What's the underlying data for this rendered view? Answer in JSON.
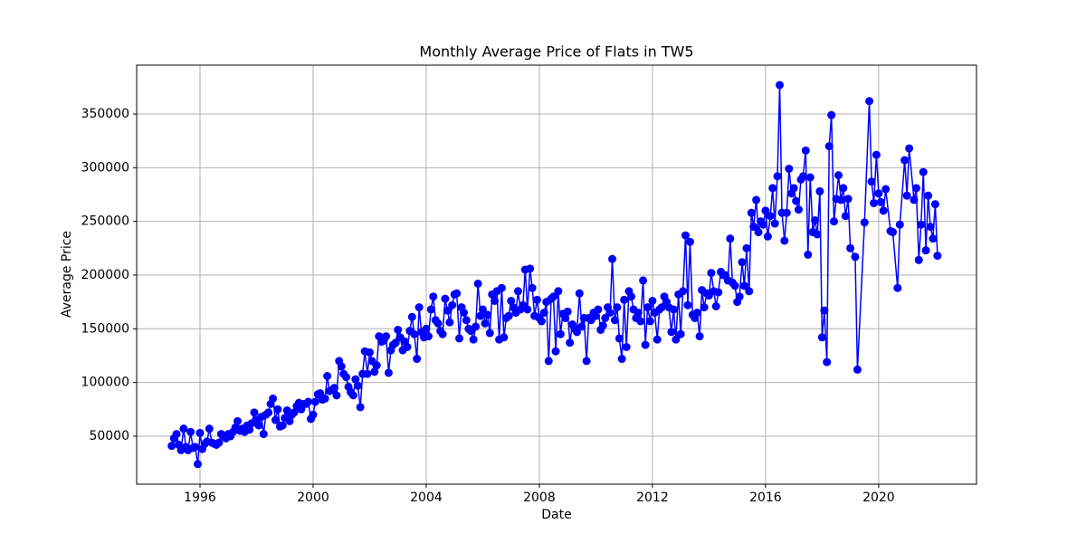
{
  "chart_data": {
    "type": "line",
    "title": "Monthly Average Price of Flats in TW5",
    "xlabel": "Date",
    "ylabel": "Average Price",
    "color": "#0000ff",
    "grid": true,
    "xlim": [
      1993.76,
      2023.46
    ],
    "ylim": [
      5300,
      395500
    ],
    "xticks": [
      1996,
      2000,
      2004,
      2008,
      2012,
      2016,
      2020
    ],
    "yticks": [
      50000,
      100000,
      150000,
      200000,
      250000,
      300000,
      350000
    ],
    "x": [
      1995,
      1995.08,
      1995.17,
      1995.25,
      1995.33,
      1995.42,
      1995.5,
      1995.58,
      1995.67,
      1995.75,
      1995.83,
      1995.92,
      1996,
      1996.08,
      1996.17,
      1996.25,
      1996.33,
      1996.42,
      1996.5,
      1996.58,
      1996.67,
      1996.75,
      1996.83,
      1996.92,
      1997,
      1997.08,
      1997.17,
      1997.25,
      1997.33,
      1997.42,
      1997.5,
      1997.58,
      1997.67,
      1997.75,
      1997.83,
      1997.92,
      1998,
      1998.08,
      1998.17,
      1998.25,
      1998.33,
      1998.42,
      1998.5,
      1998.58,
      1998.67,
      1998.75,
      1998.83,
      1998.92,
      1999,
      1999.08,
      1999.17,
      1999.25,
      1999.33,
      1999.42,
      1999.5,
      1999.58,
      1999.67,
      1999.75,
      1999.83,
      1999.92,
      2000,
      2000.08,
      2000.17,
      2000.25,
      2000.33,
      2000.42,
      2000.5,
      2000.58,
      2000.67,
      2000.75,
      2000.83,
      2000.92,
      2001,
      2001.08,
      2001.17,
      2001.25,
      2001.33,
      2001.42,
      2001.5,
      2001.58,
      2001.67,
      2001.75,
      2001.83,
      2001.92,
      2002,
      2002.08,
      2002.17,
      2002.25,
      2002.33,
      2002.42,
      2002.5,
      2002.58,
      2002.67,
      2002.75,
      2002.83,
      2002.92,
      2003,
      2003.08,
      2003.17,
      2003.25,
      2003.33,
      2003.42,
      2003.5,
      2003.58,
      2003.67,
      2003.75,
      2003.83,
      2003.92,
      2004,
      2004.08,
      2004.17,
      2004.25,
      2004.33,
      2004.42,
      2004.5,
      2004.58,
      2004.67,
      2004.75,
      2004.83,
      2004.92,
      2005,
      2005.08,
      2005.17,
      2005.25,
      2005.33,
      2005.42,
      2005.5,
      2005.58,
      2005.67,
      2005.75,
      2005.83,
      2005.92,
      2006,
      2006.08,
      2006.17,
      2006.25,
      2006.33,
      2006.42,
      2006.5,
      2006.58,
      2006.67,
      2006.75,
      2006.83,
      2006.92,
      2007,
      2007.08,
      2007.17,
      2007.25,
      2007.33,
      2007.42,
      2007.5,
      2007.58,
      2007.67,
      2007.75,
      2007.83,
      2007.92,
      2008,
      2008.08,
      2008.17,
      2008.25,
      2008.33,
      2008.42,
      2008.5,
      2008.58,
      2008.67,
      2008.75,
      2008.83,
      2008.92,
      2009,
      2009.08,
      2009.17,
      2009.25,
      2009.33,
      2009.42,
      2009.5,
      2009.58,
      2009.67,
      2009.75,
      2009.83,
      2009.92,
      2010,
      2010.08,
      2010.17,
      2010.25,
      2010.33,
      2010.42,
      2010.5,
      2010.58,
      2010.67,
      2010.75,
      2010.83,
      2010.92,
      2011,
      2011.08,
      2011.17,
      2011.25,
      2011.33,
      2011.42,
      2011.5,
      2011.58,
      2011.67,
      2011.75,
      2011.83,
      2011.92,
      2012,
      2012.08,
      2012.17,
      2012.25,
      2012.33,
      2012.42,
      2012.5,
      2012.58,
      2012.67,
      2012.75,
      2012.83,
      2012.92,
      2013,
      2013.08,
      2013.17,
      2013.25,
      2013.33,
      2013.42,
      2013.5,
      2013.58,
      2013.67,
      2013.75,
      2013.83,
      2013.92,
      2014,
      2014.08,
      2014.17,
      2014.25,
      2014.33,
      2014.42,
      2014.5,
      2014.58,
      2014.67,
      2014.75,
      2014.83,
      2014.92,
      2015,
      2015.08,
      2015.17,
      2015.25,
      2015.33,
      2015.42,
      2015.5,
      2015.58,
      2015.67,
      2015.75,
      2015.83,
      2015.92,
      2016,
      2016.08,
      2016.17,
      2016.25,
      2016.33,
      2016.42,
      2016.5,
      2016.58,
      2016.67,
      2016.75,
      2016.83,
      2016.92,
      2017,
      2017.08,
      2017.17,
      2017.25,
      2017.33,
      2017.42,
      2017.5,
      2017.58,
      2017.67,
      2017.75,
      2017.83,
      2017.92,
      2018,
      2018.08,
      2018.17,
      2018.25,
      2018.33,
      2018.42,
      2018.5,
      2018.58,
      2018.67,
      2018.75,
      2018.83,
      2018.92,
      2019,
      2019.17,
      2019.25,
      2019.5,
      2019.67,
      2019.75,
      2019.83,
      2019.92,
      2020,
      2020.08,
      2020.17,
      2020.25,
      2020.42,
      2020.5,
      2020.67,
      2020.75,
      2020.92,
      2021,
      2021.08,
      2021.25,
      2021.33,
      2021.42,
      2021.5,
      2021.58,
      2021.67,
      2021.75,
      2021.83,
      2021.92,
      2022,
      2022.08
    ],
    "values": [
      41000,
      48000,
      52000,
      42000,
      37000,
      57000,
      40000,
      37000,
      54000,
      39000,
      40000,
      24000,
      53000,
      38000,
      43000,
      45000,
      57000,
      44000,
      43000,
      42000,
      44000,
      52000,
      50000,
      48000,
      52000,
      50000,
      54000,
      58000,
      64000,
      55000,
      57000,
      54000,
      60000,
      56000,
      62000,
      72000,
      65000,
      60000,
      68000,
      52000,
      70000,
      72000,
      80000,
      85000,
      65000,
      75000,
      59000,
      60000,
      67000,
      74000,
      64000,
      70000,
      72000,
      78000,
      81000,
      75000,
      80000,
      80000,
      82000,
      66000,
      70000,
      82000,
      89000,
      90000,
      84000,
      85000,
      106000,
      92000,
      93000,
      95000,
      88000,
      120000,
      115000,
      108000,
      105000,
      96000,
      91000,
      88000,
      103000,
      97000,
      77000,
      108000,
      129000,
      108000,
      128000,
      120000,
      110000,
      116000,
      143000,
      138000,
      139000,
      143000,
      109000,
      130000,
      135000,
      137000,
      149000,
      142000,
      130000,
      138000,
      133000,
      148000,
      161000,
      145000,
      122000,
      170000,
      147000,
      142000,
      150000,
      143000,
      168000,
      180000,
      158000,
      155000,
      148000,
      145000,
      178000,
      167000,
      156000,
      172000,
      182000,
      183000,
      141000,
      170000,
      165000,
      158000,
      150000,
      148000,
      140000,
      152000,
      192000,
      162000,
      168000,
      155000,
      163000,
      146000,
      182000,
      176000,
      185000,
      140000,
      188000,
      142000,
      160000,
      162000,
      176000,
      170000,
      165000,
      185000,
      168000,
      172000,
      205000,
      168000,
      206000,
      188000,
      162000,
      177000,
      160000,
      157000,
      165000,
      175000,
      120000,
      178000,
      180000,
      129000,
      185000,
      145000,
      164000,
      160000,
      166000,
      137000,
      154000,
      150000,
      147000,
      183000,
      152000,
      160000,
      120000,
      160000,
      158000,
      165000,
      162000,
      168000,
      149000,
      153000,
      160000,
      170000,
      165000,
      215000,
      158000,
      170000,
      141000,
      122000,
      177000,
      133000,
      185000,
      180000,
      168000,
      160000,
      165000,
      157000,
      195000,
      135000,
      170000,
      157000,
      176000,
      165000,
      140000,
      168000,
      170000,
      180000,
      175000,
      170000,
      147000,
      168000,
      140000,
      182000,
      145000,
      185000,
      237000,
      172000,
      231000,
      163000,
      160000,
      165000,
      143000,
      186000,
      170000,
      183000,
      181000,
      202000,
      185000,
      171000,
      184000,
      203000,
      200000,
      200000,
      195000,
      234000,
      193000,
      190000,
      175000,
      180000,
      212000,
      190000,
      225000,
      185000,
      258000,
      245000,
      270000,
      240000,
      250000,
      247000,
      260000,
      236000,
      255000,
      281000,
      248000,
      292000,
      377000,
      258000,
      232000,
      258000,
      299000,
      276000,
      281000,
      269000,
      261000,
      289000,
      292000,
      316000,
      219000,
      291000,
      240000,
      251000,
      238000,
      278000,
      142000,
      167000,
      119000,
      320000,
      349000,
      250000,
      271000,
      293000,
      270000,
      281000,
      255000,
      271000,
      225000,
      217000,
      112000,
      249000,
      362000,
      287000,
      267000,
      312000,
      276000,
      268000,
      260000,
      280000,
      241000,
      240000,
      188000,
      247000,
      307000,
      274000,
      318000,
      270000,
      281000,
      214000,
      247000,
      296000,
      223000,
      274000,
      245000,
      234000,
      266000,
      218000
    ]
  }
}
